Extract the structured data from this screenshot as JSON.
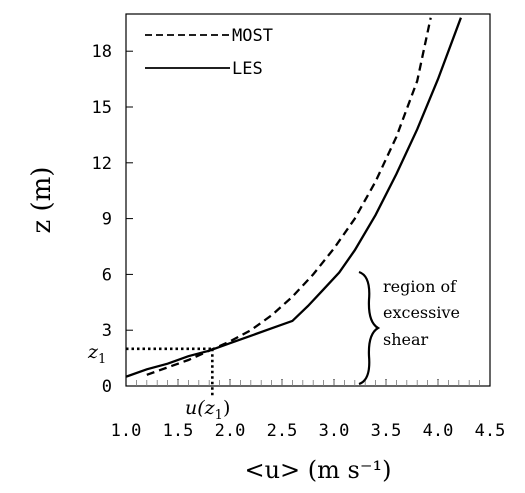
{
  "chart_data": {
    "type": "line",
    "title": "",
    "xlabel": "<u> (m s⁻¹)",
    "ylabel": "z (m)",
    "xlim": [
      1.0,
      4.5
    ],
    "ylim": [
      0,
      20
    ],
    "xticks": [
      "1.0",
      "1.5",
      "2.0",
      "2.5",
      "3.0",
      "3.5",
      "4.0",
      "4.5"
    ],
    "yticks": [
      "0",
      "3",
      "6",
      "9",
      "12",
      "15",
      "18"
    ],
    "legend_position": "top-left",
    "grid": false,
    "series": [
      {
        "name": "MOST",
        "style": "dashed",
        "color": "#000000",
        "points": [
          [
            1.2,
            0.6
          ],
          [
            1.4,
            1.0
          ],
          [
            1.6,
            1.4
          ],
          [
            1.8,
            1.9
          ],
          [
            2.0,
            2.4
          ],
          [
            2.2,
            3.0
          ],
          [
            2.4,
            3.8
          ],
          [
            2.6,
            4.8
          ],
          [
            2.8,
            6.0
          ],
          [
            3.0,
            7.4
          ],
          [
            3.2,
            9.0
          ],
          [
            3.4,
            11.0
          ],
          [
            3.6,
            13.4
          ],
          [
            3.8,
            16.4
          ],
          [
            3.93,
            19.8
          ]
        ]
      },
      {
        "name": "LES",
        "style": "solid",
        "color": "#000000",
        "points": [
          [
            1.0,
            0.5
          ],
          [
            1.2,
            0.9
          ],
          [
            1.4,
            1.2
          ],
          [
            1.6,
            1.6
          ],
          [
            1.8,
            1.9
          ],
          [
            2.0,
            2.3
          ],
          [
            2.2,
            2.7
          ],
          [
            2.4,
            3.1
          ],
          [
            2.6,
            3.5
          ],
          [
            2.75,
            4.3
          ],
          [
            2.9,
            5.2
          ],
          [
            3.05,
            6.1
          ],
          [
            3.2,
            7.3
          ],
          [
            3.4,
            9.2
          ],
          [
            3.6,
            11.4
          ],
          [
            3.8,
            13.8
          ],
          [
            4.0,
            16.5
          ],
          [
            4.22,
            19.8
          ]
        ]
      }
    ],
    "reference": {
      "u_z1": 1.83,
      "z1": 2.0
    },
    "annotations": {
      "z1_label": "z",
      "z1_sub": "1",
      "uz1_label": "u(z",
      "uz1_sub": "1",
      "uz1_close": ")",
      "region_line1": "region of",
      "region_line2": "excessive",
      "region_line3": "shear"
    }
  }
}
